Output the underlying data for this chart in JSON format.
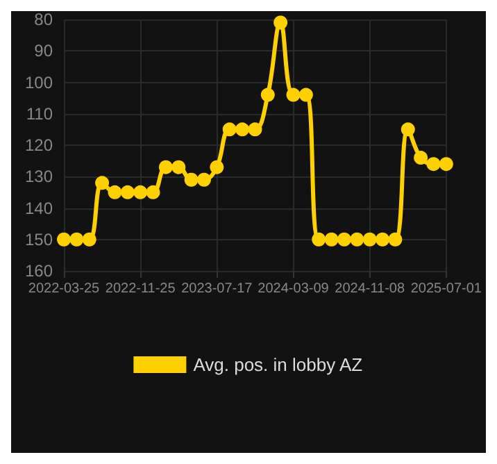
{
  "chart_data": {
    "type": "line",
    "categories": [
      "2022-03-25",
      null,
      null,
      null,
      null,
      null,
      "2022-11-25",
      null,
      null,
      null,
      null,
      null,
      "2023-07-17",
      null,
      null,
      null,
      null,
      null,
      "2024-03-09",
      null,
      null,
      null,
      null,
      null,
      "2024-11-08",
      null,
      null,
      null,
      null,
      null,
      "2025-07-01"
    ],
    "series": [
      {
        "name": "Avg. pos. in lobby AZ",
        "color": "#ffd000",
        "values": [
          150,
          150,
          150,
          132,
          135,
          135,
          135,
          135,
          127,
          127,
          131,
          131,
          127,
          115,
          115,
          115,
          104,
          81,
          104,
          104,
          150,
          150,
          150,
          150,
          150,
          150,
          150,
          115,
          124,
          126,
          126
        ]
      }
    ],
    "ylim": [
      160,
      80
    ],
    "yticks": [
      80,
      90,
      100,
      110,
      120,
      130,
      140,
      150,
      160
    ],
    "grid": true,
    "legend": "bottom",
    "marker": "circle",
    "line_style": "solid"
  }
}
